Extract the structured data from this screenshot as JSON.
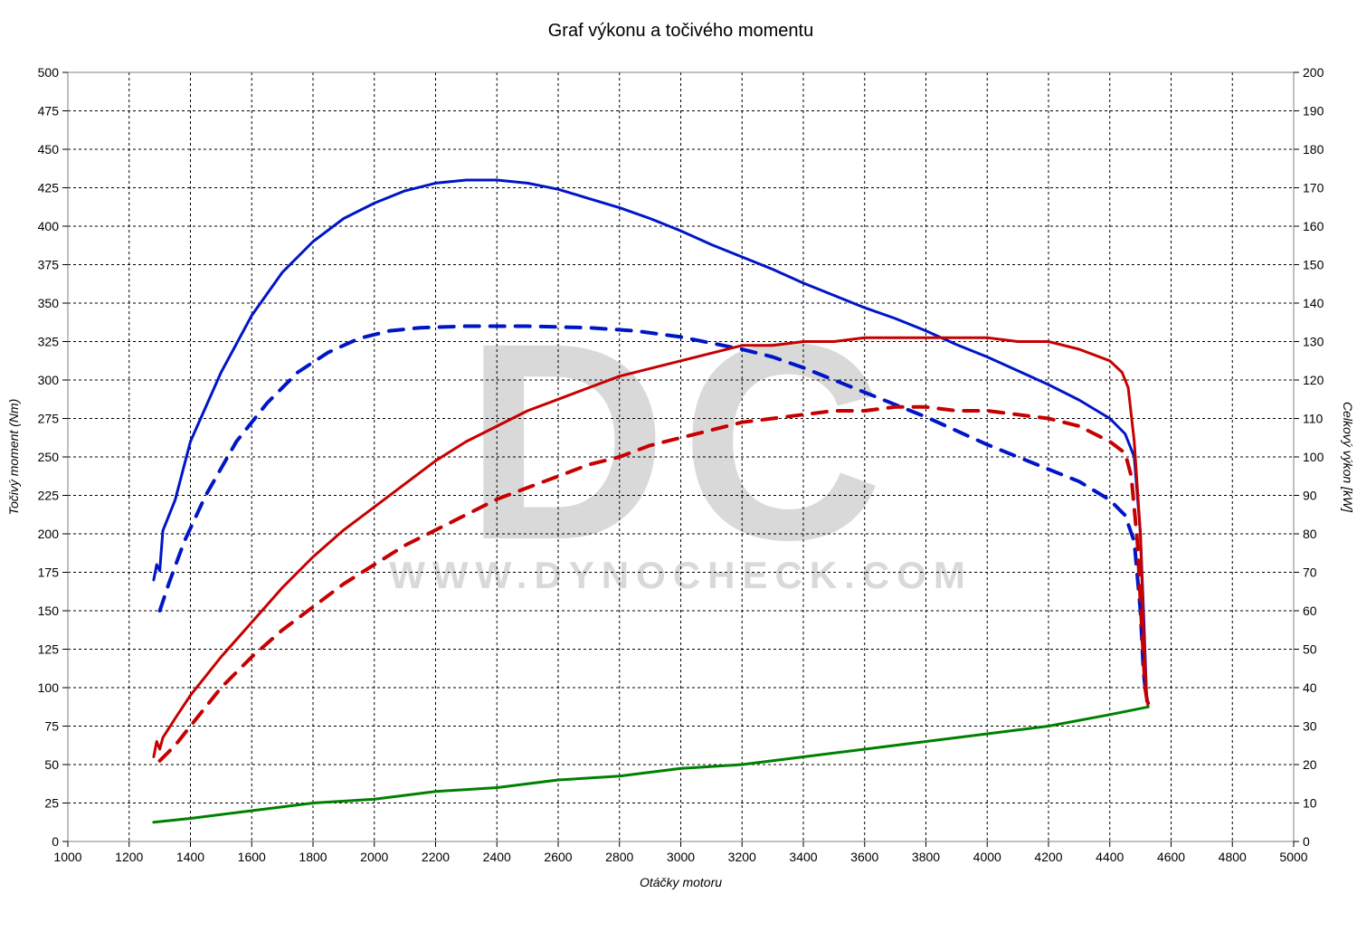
{
  "chart": {
    "type": "line",
    "title": "Graf výkonu a točivého momentu",
    "xlabel": "Otáčky motoru",
    "ylabel_left": "Točivý moment (Nm)",
    "ylabel_right": "Celkový výkon [kW]",
    "title_fontsize": 20,
    "label_fontsize": 14,
    "tick_fontsize": 14,
    "background_color": "#ffffff",
    "plot_border_color": "#808080",
    "grid_color": "#000000",
    "grid_dash": "3,3",
    "watermark_text_big": "DC",
    "watermark_text_small": "WWW.DYNOCHECK.COM",
    "watermark_color": "#d9d9d9",
    "x": {
      "min": 1000,
      "max": 5000,
      "tick_step": 200
    },
    "y_left": {
      "min": 0,
      "max": 500,
      "tick_step": 25
    },
    "y_right": {
      "min": 0,
      "max": 200,
      "tick_step": 10
    },
    "series": [
      {
        "name": "torque_tuned",
        "axis": "left",
        "color": "#0016c6",
        "width": 3,
        "dash": null,
        "points": [
          [
            1280,
            170
          ],
          [
            1290,
            180
          ],
          [
            1300,
            176
          ],
          [
            1310,
            202
          ],
          [
            1350,
            222
          ],
          [
            1400,
            260
          ],
          [
            1500,
            305
          ],
          [
            1600,
            342
          ],
          [
            1700,
            370
          ],
          [
            1800,
            390
          ],
          [
            1900,
            405
          ],
          [
            2000,
            415
          ],
          [
            2100,
            423
          ],
          [
            2200,
            428
          ],
          [
            2300,
            430
          ],
          [
            2400,
            430
          ],
          [
            2500,
            428
          ],
          [
            2600,
            424
          ],
          [
            2700,
            418
          ],
          [
            2800,
            412
          ],
          [
            2900,
            405
          ],
          [
            3000,
            397
          ],
          [
            3100,
            388
          ],
          [
            3200,
            380
          ],
          [
            3300,
            372
          ],
          [
            3400,
            363
          ],
          [
            3500,
            355
          ],
          [
            3600,
            347
          ],
          [
            3700,
            340
          ],
          [
            3800,
            332
          ],
          [
            3900,
            323
          ],
          [
            4000,
            315
          ],
          [
            4100,
            306
          ],
          [
            4200,
            297
          ],
          [
            4300,
            287
          ],
          [
            4400,
            275
          ],
          [
            4450,
            265
          ],
          [
            4480,
            250
          ],
          [
            4500,
            200
          ],
          [
            4510,
            150
          ],
          [
            4520,
            95
          ],
          [
            4525,
            90
          ]
        ]
      },
      {
        "name": "torque_stock",
        "axis": "left",
        "color": "#0016c6",
        "width": 4,
        "dash": "16,12",
        "points": [
          [
            1300,
            150
          ],
          [
            1330,
            168
          ],
          [
            1380,
            195
          ],
          [
            1450,
            225
          ],
          [
            1550,
            260
          ],
          [
            1650,
            285
          ],
          [
            1750,
            305
          ],
          [
            1850,
            318
          ],
          [
            1950,
            327
          ],
          [
            2050,
            332
          ],
          [
            2150,
            334
          ],
          [
            2300,
            335
          ],
          [
            2500,
            335
          ],
          [
            2700,
            334
          ],
          [
            2850,
            332
          ],
          [
            3000,
            328
          ],
          [
            3100,
            324
          ],
          [
            3200,
            320
          ],
          [
            3300,
            315
          ],
          [
            3400,
            308
          ],
          [
            3500,
            300
          ],
          [
            3600,
            292
          ],
          [
            3700,
            284
          ],
          [
            3800,
            276
          ],
          [
            3900,
            267
          ],
          [
            4000,
            258
          ],
          [
            4100,
            250
          ],
          [
            4200,
            242
          ],
          [
            4300,
            234
          ],
          [
            4400,
            222
          ],
          [
            4450,
            212
          ],
          [
            4480,
            195
          ],
          [
            4500,
            150
          ],
          [
            4510,
            110
          ],
          [
            4520,
            92
          ],
          [
            4525,
            90
          ]
        ]
      },
      {
        "name": "power_tuned",
        "axis": "right",
        "color": "#c60000",
        "width": 3,
        "dash": null,
        "points": [
          [
            1280,
            22
          ],
          [
            1290,
            26
          ],
          [
            1300,
            24
          ],
          [
            1310,
            27
          ],
          [
            1350,
            32
          ],
          [
            1400,
            38
          ],
          [
            1500,
            48
          ],
          [
            1600,
            57
          ],
          [
            1700,
            66
          ],
          [
            1800,
            74
          ],
          [
            1900,
            81
          ],
          [
            2000,
            87
          ],
          [
            2100,
            93
          ],
          [
            2200,
            99
          ],
          [
            2300,
            104
          ],
          [
            2400,
            108
          ],
          [
            2500,
            112
          ],
          [
            2600,
            115
          ],
          [
            2700,
            118
          ],
          [
            2800,
            121
          ],
          [
            2900,
            123
          ],
          [
            3000,
            125
          ],
          [
            3100,
            127
          ],
          [
            3200,
            129
          ],
          [
            3300,
            129
          ],
          [
            3400,
            130
          ],
          [
            3500,
            130
          ],
          [
            3600,
            131
          ],
          [
            3700,
            131
          ],
          [
            3800,
            131
          ],
          [
            3900,
            131
          ],
          [
            4000,
            131
          ],
          [
            4100,
            130
          ],
          [
            4200,
            130
          ],
          [
            4300,
            128
          ],
          [
            4400,
            125
          ],
          [
            4440,
            122
          ],
          [
            4460,
            118
          ],
          [
            4480,
            104
          ],
          [
            4500,
            80
          ],
          [
            4510,
            55
          ],
          [
            4520,
            38
          ],
          [
            4525,
            35
          ]
        ]
      },
      {
        "name": "power_stock",
        "axis": "right",
        "color": "#c60000",
        "width": 4,
        "dash": "16,12",
        "points": [
          [
            1300,
            21
          ],
          [
            1350,
            25
          ],
          [
            1400,
            30
          ],
          [
            1500,
            40
          ],
          [
            1600,
            48
          ],
          [
            1700,
            55
          ],
          [
            1800,
            61
          ],
          [
            1900,
            67
          ],
          [
            2000,
            72
          ],
          [
            2100,
            77
          ],
          [
            2200,
            81
          ],
          [
            2300,
            85
          ],
          [
            2400,
            89
          ],
          [
            2500,
            92
          ],
          [
            2600,
            95
          ],
          [
            2700,
            98
          ],
          [
            2800,
            100
          ],
          [
            2900,
            103
          ],
          [
            3000,
            105
          ],
          [
            3100,
            107
          ],
          [
            3200,
            109
          ],
          [
            3300,
            110
          ],
          [
            3400,
            111
          ],
          [
            3500,
            112
          ],
          [
            3600,
            112
          ],
          [
            3700,
            113
          ],
          [
            3800,
            113
          ],
          [
            3900,
            112
          ],
          [
            4000,
            112
          ],
          [
            4100,
            111
          ],
          [
            4200,
            110
          ],
          [
            4300,
            108
          ],
          [
            4400,
            104
          ],
          [
            4450,
            101
          ],
          [
            4470,
            95
          ],
          [
            4490,
            78
          ],
          [
            4505,
            55
          ],
          [
            4515,
            40
          ],
          [
            4525,
            35
          ]
        ]
      },
      {
        "name": "loss",
        "axis": "right",
        "color": "#008000",
        "width": 3,
        "dash": null,
        "points": [
          [
            1280,
            5
          ],
          [
            1400,
            6
          ],
          [
            1600,
            8
          ],
          [
            1800,
            10
          ],
          [
            2000,
            11
          ],
          [
            2200,
            13
          ],
          [
            2400,
            14
          ],
          [
            2600,
            16
          ],
          [
            2800,
            17
          ],
          [
            3000,
            19
          ],
          [
            3200,
            20
          ],
          [
            3400,
            22
          ],
          [
            3600,
            24
          ],
          [
            3800,
            26
          ],
          [
            4000,
            28
          ],
          [
            4200,
            30
          ],
          [
            4400,
            33
          ],
          [
            4525,
            35
          ]
        ]
      }
    ]
  }
}
